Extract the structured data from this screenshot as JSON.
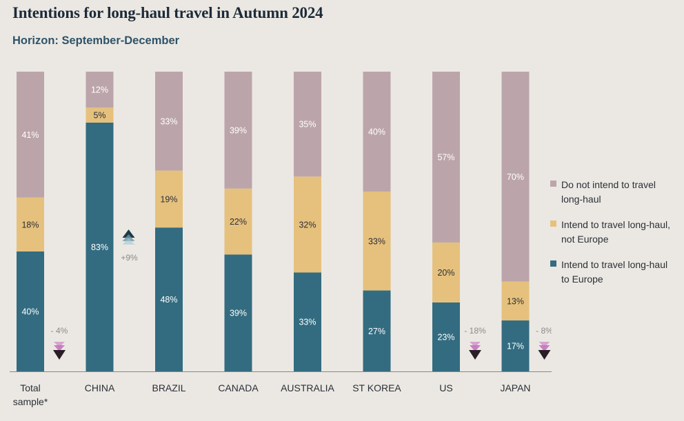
{
  "title": "Intentions for long-haul travel in Autumn 2024",
  "subtitle": "Horizon: September-December",
  "colors": {
    "europe": "#336c80",
    "not_europe": "#e6c17d",
    "no_travel": "#bca5aa",
    "background": "#ebe8e3",
    "arrow_up": "#1d3a4a",
    "arrow_down_dark": "#2a1e26",
    "arrow_down_light": "#c46bbd",
    "change_text": "#8a8a8a"
  },
  "legend": [
    {
      "key": "no_travel",
      "label": "Do not intend to travel long-haul"
    },
    {
      "key": "not_europe",
      "label": "Intend to travel long-haul, not Europe"
    },
    {
      "key": "europe",
      "label": "Intend to travel long-haul to Europe"
    }
  ],
  "chart_data": {
    "type": "bar",
    "stacked": true,
    "orientation": "vertical",
    "ylim": [
      0,
      100
    ],
    "grid": false,
    "legend_position": "right",
    "categories": [
      "Total\nsample*",
      "CHINA",
      "BRAZIL",
      "CANADA",
      "AUSTRALIA",
      "ST KOREA",
      "US",
      "JAPAN"
    ],
    "series": [
      {
        "name": "Intend to travel long-haul to Europe",
        "key": "europe",
        "values": [
          40,
          83,
          48,
          39,
          33,
          27,
          23,
          17
        ],
        "labels": [
          "40%",
          "83%",
          "48%",
          "39%",
          "33%",
          "27%",
          "23%",
          "17%"
        ]
      },
      {
        "name": "Intend to travel long-haul, not Europe",
        "key": "not_europe",
        "values": [
          18,
          5,
          19,
          22,
          32,
          33,
          20,
          13
        ],
        "labels": [
          "18%",
          "5%",
          "19%",
          "22%",
          "32%",
          "33%",
          "20%",
          "13%"
        ]
      },
      {
        "name": "Do not intend to travel long-haul",
        "key": "no_travel",
        "values": [
          41,
          12,
          33,
          39,
          35,
          40,
          57,
          70
        ],
        "labels": [
          "41%",
          "12%",
          "33%",
          "39%",
          "35%",
          "40%",
          "57%",
          "70%"
        ]
      }
    ],
    "annotations": [
      {
        "category": "Total\nsample*",
        "text": "- 4%",
        "direction": "down"
      },
      {
        "category": "CHINA",
        "text": "+9%",
        "direction": "up"
      },
      {
        "category": "US",
        "text": "- 18%",
        "direction": "down"
      },
      {
        "category": "JAPAN",
        "text": "- 8%",
        "direction": "down"
      }
    ]
  }
}
